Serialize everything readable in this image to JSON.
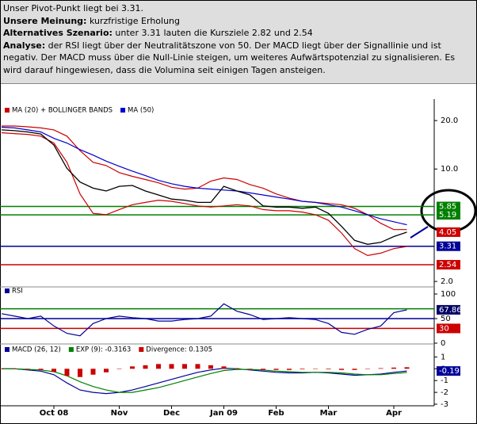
{
  "commentary": [
    {
      "text": "Unser Pivot-Punkt liegt bei 3.31."
    },
    {
      "label": "Unsere Meinung:",
      "text": "kurzfristige Erholung"
    },
    {
      "label": "Alternatives Szenario:",
      "text": "unter 3.31 lauten die Kursziele 2.82 und 2.54"
    },
    {
      "label": "Analyse:",
      "text": "der RSI liegt über der Neutralitätszone von 50. Der MACD liegt über der Signallinie und ist negativ. Der MACD muss über die Null-Linie steigen, um weiteres Aufwärtspotenzial zu signalisieren. Es wird darauf hingewiesen, dass die Volumina seit einigen Tagen ansteigen."
    }
  ],
  "chart_data": [
    {
      "type": "line",
      "log_scale": true,
      "ylim": [
        1.85,
        26.3
      ],
      "yticks": [
        {
          "value": 2,
          "label": "2.0"
        },
        {
          "value": 10,
          "label": "10.0"
        },
        {
          "value": 20,
          "label": "20.0"
        }
      ],
      "categories": [
        null,
        null,
        null,
        null,
        "Oct 08",
        null,
        null,
        null,
        null,
        "Nov",
        null,
        null,
        null,
        "Dec",
        null,
        null,
        null,
        "Jan 09",
        null,
        null,
        null,
        "Feb",
        null,
        null,
        null,
        "Mar",
        null,
        null,
        null,
        null,
        "Apr",
        null
      ],
      "close": [
        17.5,
        17.3,
        17,
        16.5,
        14.1,
        10.1,
        8.3,
        7.6,
        7.3,
        7.8,
        7.9,
        7.3,
        6.9,
        6.5,
        6.4,
        6.2,
        6.2,
        7.8,
        7.3,
        6.9,
        5.9,
        5.8,
        5.8,
        5.7,
        5.8,
        5.3,
        4.4,
        3.6,
        3.4,
        3.5,
        3.8,
        4.05
      ],
      "close_color": "#000000",
      "last_label_color": "#cc0000",
      "series": [
        {
          "name": "MA (20) + BOLLINGER BANDS",
          "color": "#cc0000",
          "upper": [
            18.5,
            18.5,
            18.3,
            18,
            17.5,
            16,
            13,
            11,
            10.5,
            9.5,
            9,
            8.6,
            8.2,
            7.7,
            7.5,
            7.6,
            8.4,
            8.8,
            8.6,
            8,
            7.6,
            7,
            6.6,
            6.3,
            6.2,
            6.1,
            6,
            5.7,
            5.2,
            4.6,
            4.2,
            4.2
          ],
          "lower": [
            16.8,
            16.6,
            16.4,
            16,
            14.5,
            11,
            7,
            5.3,
            5.2,
            5.6,
            6,
            6.2,
            6.4,
            6.3,
            6.1,
            5.9,
            5.8,
            5.9,
            6,
            5.9,
            5.6,
            5.5,
            5.5,
            5.4,
            5.2,
            4.8,
            4,
            3.2,
            2.9,
            3,
            3.2,
            3.3
          ]
        },
        {
          "name": "MA (50)",
          "color": "#0000cc",
          "values": [
            18.2,
            18,
            17.5,
            17,
            15.5,
            14.5,
            13.2,
            12.2,
            11.2,
            10.4,
            9.7,
            9.1,
            8.5,
            8.1,
            7.8,
            7.6,
            7.5,
            7.4,
            7.3,
            7.1,
            6.9,
            6.7,
            6.5,
            6.3,
            6.2,
            6,
            5.8,
            5.5,
            5.2,
            4.9,
            4.7,
            4.5
          ]
        }
      ],
      "levels": [
        {
          "value": 5.85,
          "color": "#008000"
        },
        {
          "value": 5.19,
          "color": "#008000"
        },
        {
          "value": 3.31,
          "color": "#000099"
        },
        {
          "value": 2.54,
          "color": "#cc0000"
        }
      ]
    },
    {
      "type": "line",
      "ylim": [
        0,
        100
      ],
      "yticks": [
        0,
        50,
        100
      ],
      "last_label_color": "#000066",
      "series": [
        {
          "name": "RSI",
          "color": "#000099",
          "values": [
            60,
            55,
            50,
            55,
            35,
            20,
            15,
            40,
            50,
            55,
            52,
            50,
            45,
            45,
            48,
            50,
            55,
            80,
            65,
            58,
            48,
            50,
            52,
            50,
            48,
            40,
            22,
            18,
            28,
            35,
            62,
            67.86
          ]
        }
      ],
      "levels": [
        {
          "value": 70,
          "color": "#008000"
        },
        {
          "value": 50,
          "color": "#000099"
        },
        {
          "value": 30,
          "color": "#cc0000"
        }
      ]
    },
    {
      "type": "line",
      "ylim": [
        -3,
        1.9
      ],
      "yticks": [
        1,
        0,
        -1,
        -2,
        -3
      ],
      "last_label_color": "#000099",
      "series": [
        {
          "name": "MACD (26, 12)",
          "color": "#000099",
          "values": [
            0,
            0,
            -0.1,
            -0.2,
            -0.5,
            -1.2,
            -1.8,
            -2,
            -2.1,
            -2,
            -1.8,
            -1.5,
            -1.2,
            -0.9,
            -0.6,
            -0.3,
            -0.1,
            0.05,
            0,
            -0.1,
            -0.2,
            -0.3,
            -0.35,
            -0.35,
            -0.3,
            -0.35,
            -0.45,
            -0.55,
            -0.5,
            -0.45,
            -0.3,
            -0.19
          ]
        },
        {
          "name": "EXP (9): -0.3163",
          "color": "#008000",
          "values": [
            0,
            0,
            -0.05,
            -0.1,
            -0.25,
            -0.6,
            -1.1,
            -1.5,
            -1.8,
            -2,
            -2,
            -1.8,
            -1.6,
            -1.3,
            -1,
            -0.7,
            -0.4,
            -0.15,
            -0.05,
            -0.05,
            -0.1,
            -0.2,
            -0.25,
            -0.3,
            -0.3,
            -0.3,
            -0.35,
            -0.45,
            -0.5,
            -0.5,
            -0.4,
            -0.3163
          ]
        },
        {
          "name": "Divergence: 0.1305",
          "color": "#cc0000",
          "style": "bar",
          "values": [
            0,
            0,
            -0.05,
            -0.1,
            -0.25,
            -0.6,
            -0.7,
            -0.5,
            -0.3,
            0,
            0.2,
            0.3,
            0.4,
            0.4,
            0.4,
            0.4,
            0.3,
            0.2,
            0.05,
            -0.05,
            -0.1,
            -0.1,
            -0.1,
            -0.05,
            0,
            -0.05,
            -0.1,
            -0.1,
            0,
            0.05,
            0.1,
            0.1305
          ]
        }
      ]
    }
  ]
}
